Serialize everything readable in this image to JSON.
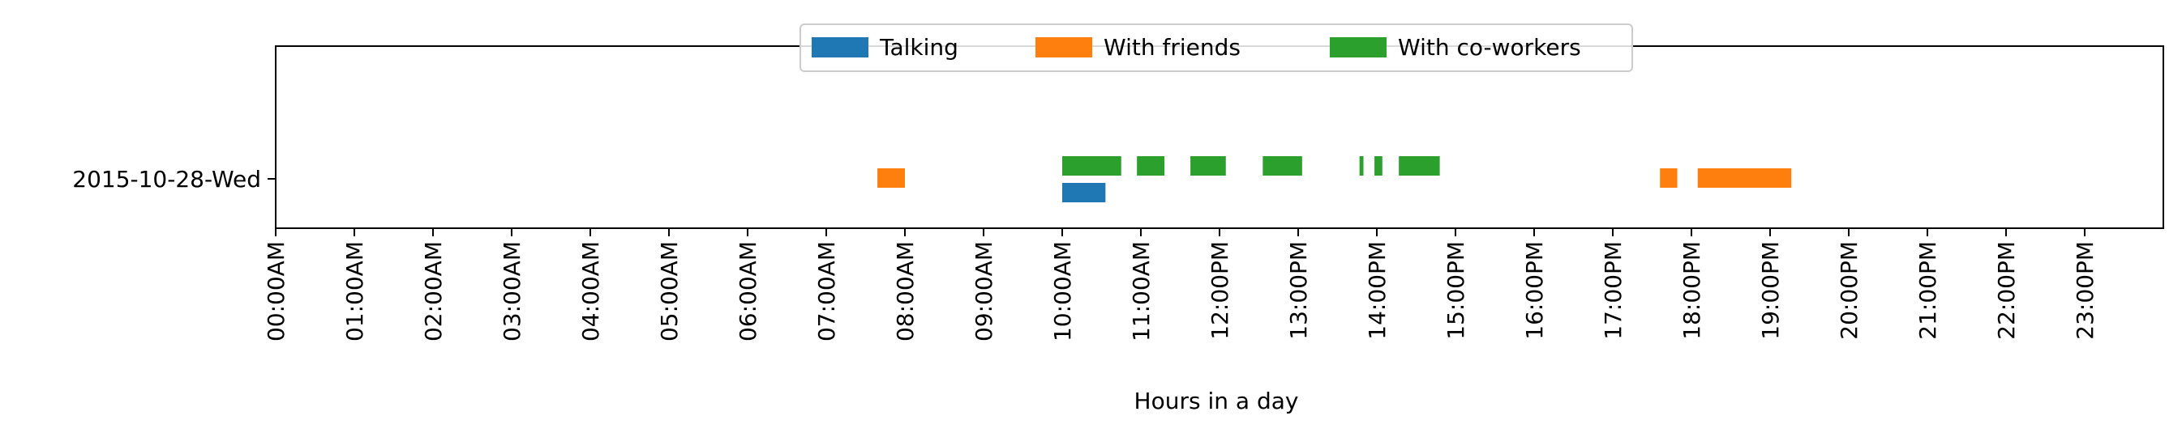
{
  "chart_data": {
    "type": "bar",
    "orientation": "horizontal-timeline",
    "xlabel": "Hours in a day",
    "ylabel": "",
    "xlim": [
      0,
      24
    ],
    "y_categories": [
      "2015-10-28-Wed"
    ],
    "x_ticks": [
      {
        "value": 0,
        "label": "00:00AM"
      },
      {
        "value": 1,
        "label": "01:00AM"
      },
      {
        "value": 2,
        "label": "02:00AM"
      },
      {
        "value": 3,
        "label": "03:00AM"
      },
      {
        "value": 4,
        "label": "04:00AM"
      },
      {
        "value": 5,
        "label": "05:00AM"
      },
      {
        "value": 6,
        "label": "06:00AM"
      },
      {
        "value": 7,
        "label": "07:00AM"
      },
      {
        "value": 8,
        "label": "08:00AM"
      },
      {
        "value": 9,
        "label": "09:00AM"
      },
      {
        "value": 10,
        "label": "10:00AM"
      },
      {
        "value": 11,
        "label": "11:00AM"
      },
      {
        "value": 12,
        "label": "12:00PM"
      },
      {
        "value": 13,
        "label": "13:00PM"
      },
      {
        "value": 14,
        "label": "14:00PM"
      },
      {
        "value": 15,
        "label": "15:00PM"
      },
      {
        "value": 16,
        "label": "16:00PM"
      },
      {
        "value": 17,
        "label": "17:00PM"
      },
      {
        "value": 18,
        "label": "18:00PM"
      },
      {
        "value": 19,
        "label": "19:00PM"
      },
      {
        "value": 20,
        "label": "20:00PM"
      },
      {
        "value": 21,
        "label": "21:00PM"
      },
      {
        "value": 22,
        "label": "22:00PM"
      },
      {
        "value": 23,
        "label": "23:00PM"
      }
    ],
    "legend_placement": "top-center",
    "grid": false,
    "series": [
      {
        "name": "Talking",
        "color": "#1f77b4",
        "lane": "lower",
        "intervals": [
          [
            10.0,
            10.55
          ]
        ]
      },
      {
        "name": "With friends",
        "color": "#ff7f0e",
        "lane": "center",
        "intervals": [
          [
            7.65,
            8.0
          ],
          [
            17.6,
            17.82
          ],
          [
            18.08,
            19.27
          ]
        ]
      },
      {
        "name": "With co-workers",
        "color": "#2ca02c",
        "lane": "upper",
        "intervals": [
          [
            10.0,
            10.75
          ],
          [
            10.95,
            11.3
          ],
          [
            11.63,
            12.08
          ],
          [
            12.55,
            13.05
          ],
          [
            13.78,
            13.83
          ],
          [
            13.97,
            14.07
          ],
          [
            14.28,
            14.8
          ]
        ]
      }
    ]
  }
}
